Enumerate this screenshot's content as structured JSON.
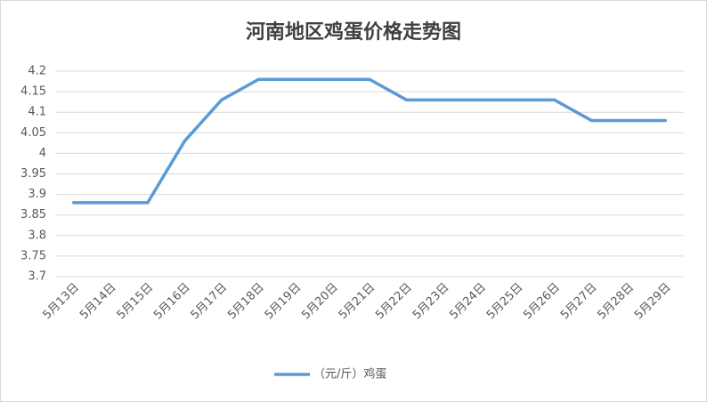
{
  "chart_data": {
    "type": "line",
    "title": "河南地区鸡蛋价格走势图",
    "categories": [
      "5月13日",
      "5月14日",
      "5月15日",
      "5月16日",
      "5月17日",
      "5月18日",
      "5月19日",
      "5月20日",
      "5月21日",
      "5月22日",
      "5月23日",
      "5月24日",
      "5月25日",
      "5月26日",
      "5月27日",
      "5月28日",
      "5月29日"
    ],
    "series": [
      {
        "name": "（元/斤）鸡蛋",
        "color": "#5b9bd5",
        "values": [
          3.88,
          3.88,
          3.88,
          4.03,
          4.13,
          4.18,
          4.18,
          4.18,
          4.18,
          4.13,
          4.13,
          4.13,
          4.13,
          4.13,
          4.08,
          4.08,
          4.08
        ]
      }
    ],
    "ylim": [
      3.7,
      4.2
    ],
    "yticks": [
      3.7,
      3.75,
      3.8,
      3.85,
      3.9,
      3.95,
      4,
      4.05,
      4.1,
      4.15,
      4.2
    ],
    "grid": true,
    "legend": "bottom"
  }
}
